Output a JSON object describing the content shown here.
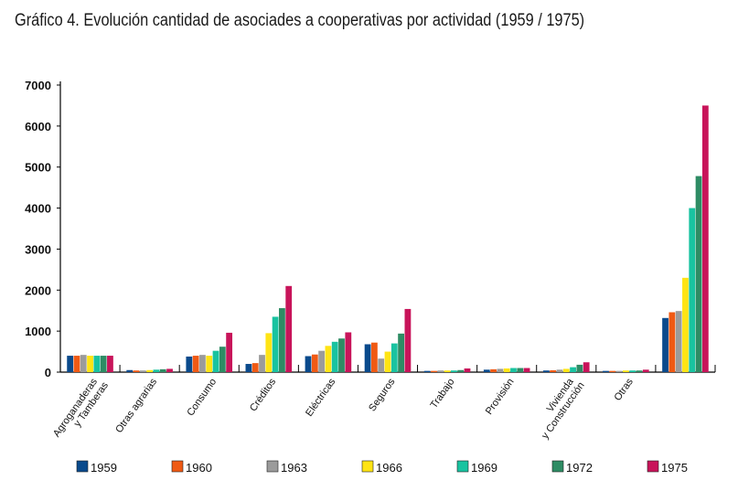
{
  "chart_data": {
    "type": "bar",
    "title": "Gráfico 4. Evolución cantidad de asociades a cooperativas por actividad (1959 / 1975)",
    "xlabel": "",
    "ylabel": "",
    "ylim": [
      0,
      7000
    ],
    "yticks": [
      "7000",
      "6000",
      "5000",
      "4000",
      "3000",
      "2000",
      "1000",
      "0"
    ],
    "legend_position": "bottom",
    "categories": [
      [
        "Agroganaderas",
        "y Tamberas"
      ],
      [
        "Otras agrarias"
      ],
      [
        "Consumo"
      ],
      [
        "Créditos"
      ],
      [
        "Eléctricas"
      ],
      [
        "Seguros"
      ],
      [
        "Trabajo"
      ],
      [
        "Provisión"
      ],
      [
        "Vivienda",
        "y Construcción"
      ],
      [
        "Otras"
      ],
      [
        ""
      ]
    ],
    "series": [
      {
        "name": "1959",
        "color": "#0a4a8c",
        "values": [
          400,
          50,
          380,
          200,
          390,
          680,
          30,
          60,
          40,
          30,
          1320
        ]
      },
      {
        "name": "1960",
        "color": "#f05a14",
        "values": [
          400,
          40,
          400,
          220,
          430,
          720,
          30,
          70,
          45,
          30,
          1460
        ]
      },
      {
        "name": "1963",
        "color": "#9b9b9b",
        "values": [
          420,
          40,
          420,
          420,
          520,
          330,
          40,
          80,
          60,
          30,
          1490
        ]
      },
      {
        "name": "1966",
        "color": "#ffe414",
        "values": [
          400,
          50,
          400,
          950,
          640,
          500,
          40,
          90,
          80,
          40,
          2300
        ]
      },
      {
        "name": "1969",
        "color": "#19c3a0",
        "values": [
          400,
          60,
          520,
          1350,
          740,
          700,
          40,
          100,
          120,
          40,
          4000
        ]
      },
      {
        "name": "1972",
        "color": "#2e8c64",
        "values": [
          400,
          70,
          620,
          1560,
          820,
          940,
          50,
          100,
          180,
          40,
          4780
        ]
      },
      {
        "name": "1975",
        "color": "#c8145a",
        "values": [
          400,
          80,
          960,
          2100,
          970,
          1540,
          90,
          100,
          240,
          60,
          6500
        ]
      }
    ]
  }
}
